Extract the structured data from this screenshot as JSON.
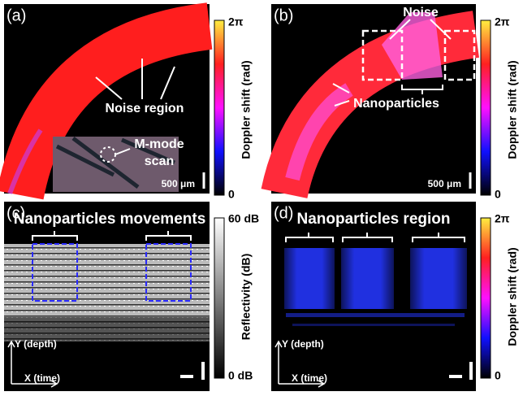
{
  "panels": [
    {
      "label": "(a)",
      "annotations": [
        "Noise region",
        "M-mode",
        "scan"
      ],
      "scale_bar": "500 μm",
      "colorbar": {
        "title": "Doppler shift (rad)",
        "top": "2π",
        "bottom": "0"
      }
    },
    {
      "label": "(b)",
      "annotations": [
        "Noise",
        "Nanoparticles"
      ],
      "scale_bar": "500 μm",
      "colorbar": {
        "title": "Doppler shift (rad)",
        "top": "2π",
        "bottom": "0"
      }
    },
    {
      "label": "(c)",
      "annotations": [
        "Nanoparticles movements"
      ],
      "axes": {
        "y": "Y (depth)",
        "x": "X (time)"
      },
      "colorbar": {
        "title": "Reflectivity (dB)",
        "top": "60 dB",
        "bottom": "0 dB"
      }
    },
    {
      "label": "(d)",
      "annotations": [
        "Nanoparticles region"
      ],
      "axes": {
        "y": "Y (depth)",
        "x": "X (time)"
      },
      "colorbar": {
        "title": "Doppler shift (rad)",
        "top": "2π",
        "bottom": "0"
      }
    }
  ]
}
